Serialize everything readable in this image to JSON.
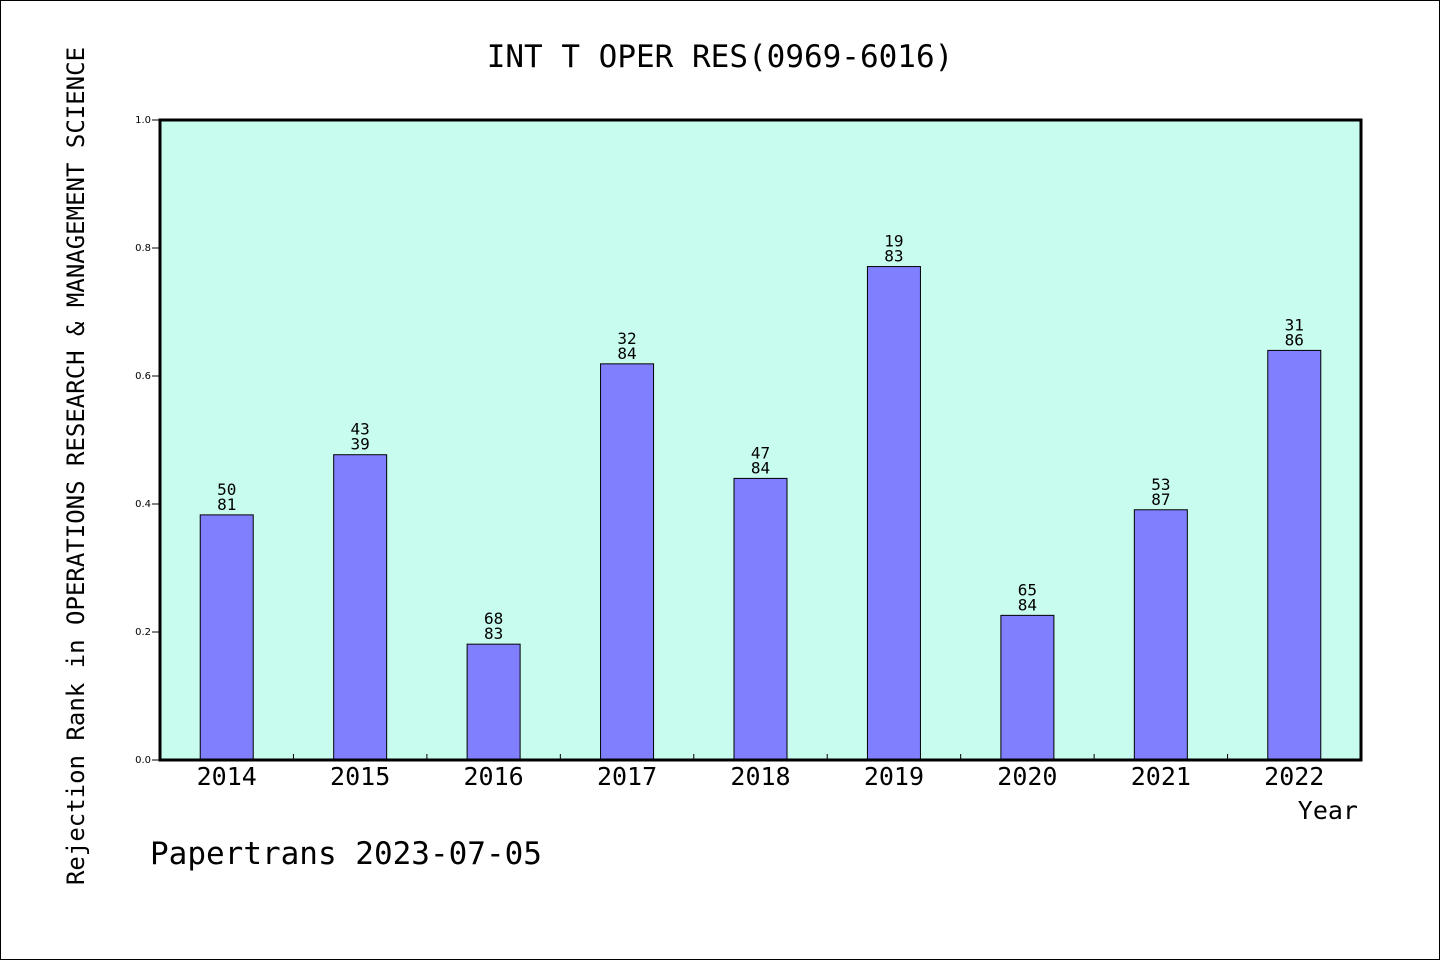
{
  "chart_data": {
    "type": "bar",
    "title": "INT T OPER RES(0969-6016)",
    "xlabel": "Year",
    "ylabel": "Rejection Rank in OPERATIONS RESEARCH & MANAGEMENT SCIENCE",
    "footer": "Papertrans 2023-07-05",
    "categories": [
      "2014",
      "2015",
      "2016",
      "2017",
      "2018",
      "2019",
      "2020",
      "2021",
      "2022"
    ],
    "values": [
      0.383,
      0.477,
      0.181,
      0.619,
      0.44,
      0.771,
      0.226,
      0.391,
      0.64
    ],
    "labels_top": [
      "50",
      "43",
      "68",
      "32",
      "47",
      "19",
      "65",
      "53",
      "31"
    ],
    "labels_bottom": [
      "81",
      "39",
      "83",
      "84",
      "84",
      "83",
      "84",
      "87",
      "86"
    ],
    "ylim": [
      0,
      1.0
    ],
    "yticks": [
      "0.0",
      "0.2",
      "0.4",
      "0.6",
      "0.8",
      "1.0"
    ],
    "grid": false,
    "colors": {
      "plot_bg": "#c8fcee",
      "bar": "#8080ff",
      "axis": "#000000"
    }
  }
}
